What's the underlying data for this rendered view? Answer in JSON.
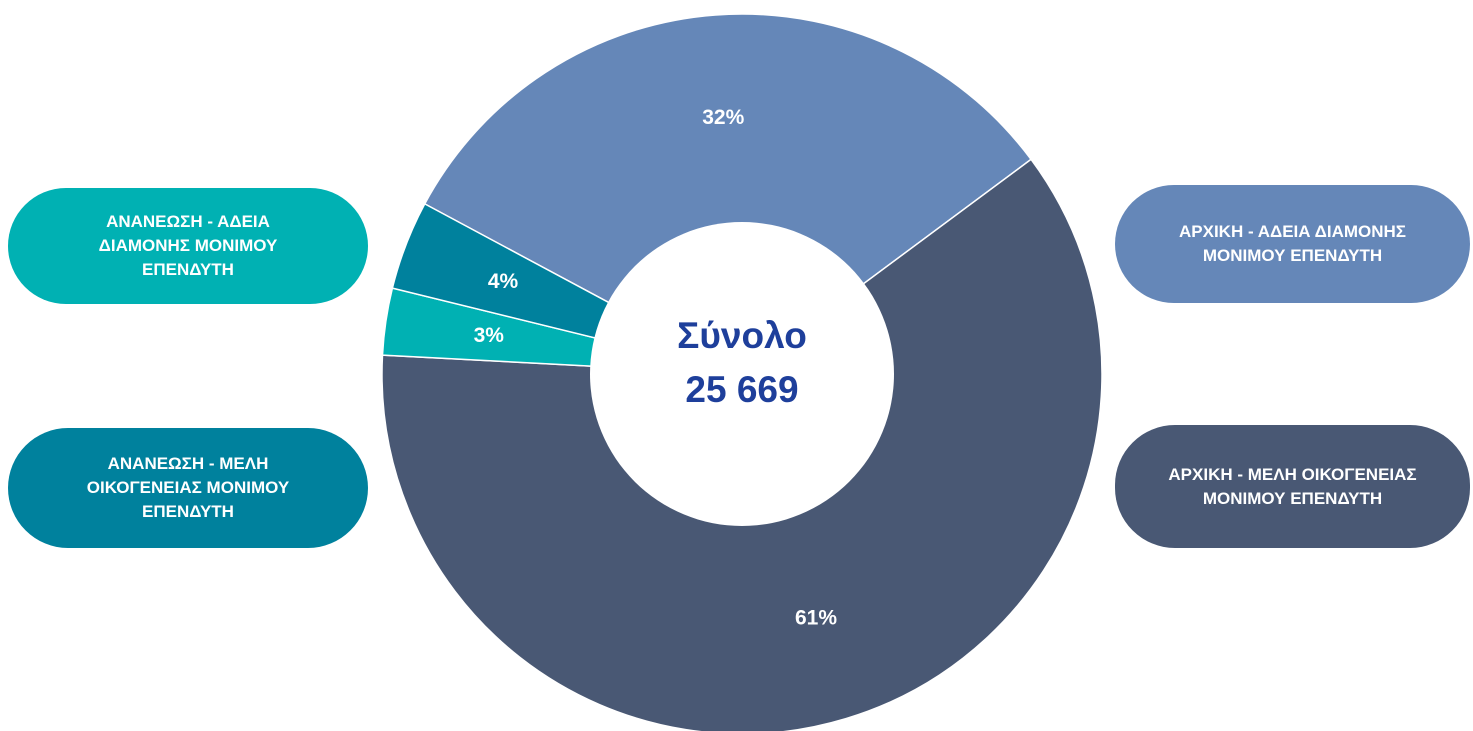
{
  "chart_data": {
    "type": "pie",
    "donut": true,
    "categories": [
      "ΑΡΧΙΚΗ - ΑΔΕΙΑ ΔΙΑΜΟΝΗΣ ΜΟΝΙΜΟΥ ΕΠΕΝΔΥΤΗ",
      "ΑΡΧΙΚΗ - ΜΕΛΗ ΟΙΚΟΓΕΝΕΙΑΣ ΜΟΝΙΜΟΥ ΕΠΕΝΔΥΤΗ",
      "ΑΝΑΝΕΩΣΗ - ΑΔΕΙΑ ΔΙΑΜΟΝΗΣ ΜΟΝΙΜΟΥ ΕΠΕΝΔΥΤΗ",
      "ΑΝΑΝΕΩΣΗ - ΜΕΛΗ ΟΙΚΟΓΕΝΕΙΑΣ ΜΟΝΙΜΟΥ ΕΠΕΝΔΥΤΗ"
    ],
    "values": [
      32,
      61,
      3,
      4
    ],
    "value_labels": [
      "32%",
      "61%",
      "3%",
      "4%"
    ],
    "colors": [
      "#6587b8",
      "#495874",
      "#00b1b3",
      "#00819d"
    ],
    "center_title": "Σύνολο",
    "center_value": "25 669"
  }
}
